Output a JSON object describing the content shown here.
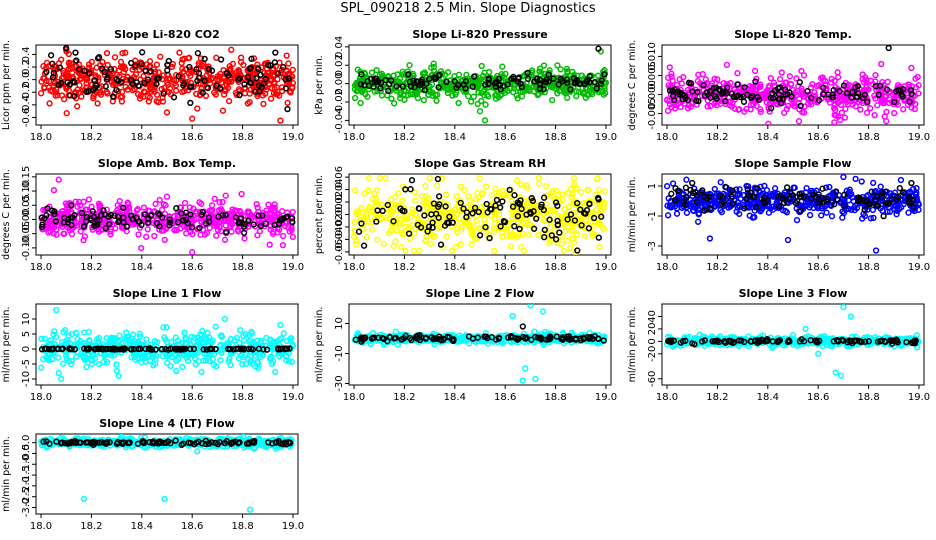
{
  "page_title": "SPL_090218  2.5 Min. Slope Diagnostics",
  "chart_data": [
    {
      "type": "scatter",
      "title": "Slope Li-820 CO2",
      "ylabel": "Licor ppm per min.",
      "xlim": [
        17.98,
        19.02
      ],
      "ylim": [
        -0.72,
        0.55
      ],
      "xticks": [
        18.0,
        18.2,
        18.4,
        18.6,
        18.8,
        19.0
      ],
      "xticklabels": [
        "18.0",
        "18.2",
        "18.4",
        "18.6",
        "18.8",
        "19.0"
      ],
      "yticks": [
        -0.6,
        -0.4,
        -0.2,
        0.0,
        0.2,
        0.4
      ],
      "yticklabels": [
        "-0.6",
        "-0.4",
        "-0.2",
        "0.0",
        "0.2",
        "0.4"
      ],
      "series": [
        {
          "name": "all",
          "color": "#ff0000",
          "center": 0.0,
          "spread": 0.18,
          "outliers": [
            [
              18.1,
              0.48
            ],
            [
              18.6,
              -0.62
            ],
            [
              18.95,
              -0.65
            ],
            [
              18.5,
              -0.52
            ]
          ]
        },
        {
          "name": "selected",
          "color": "#000000",
          "center": 0.0,
          "spread": 0.18,
          "outliers": [
            [
              18.1,
              0.5
            ],
            [
              18.93,
              0.43
            ]
          ]
        }
      ]
    },
    {
      "type": "scatter",
      "title": "Slope Li-820 Pressure",
      "ylabel": "kPa per min.",
      "xlim": [
        17.98,
        19.02
      ],
      "ylim": [
        -0.045,
        0.042
      ],
      "xticks": [
        18.0,
        18.2,
        18.4,
        18.6,
        18.8,
        19.0
      ],
      "xticklabels": [
        "18.0",
        "18.2",
        "18.4",
        "18.6",
        "18.8",
        "19.0"
      ],
      "yticks": [
        -0.04,
        -0.02,
        0.0,
        0.02,
        0.04
      ],
      "yticklabels": [
        "-0.04",
        "-0.02",
        "0.00",
        "0.02",
        "0.04"
      ],
      "series": [
        {
          "name": "all",
          "color": "#00bb00",
          "center": 0.0,
          "spread": 0.008,
          "outliers": [
            [
              18.52,
              -0.04
            ],
            [
              18.5,
              -0.03
            ],
            [
              18.22,
              0.02
            ],
            [
              18.98,
              0.035
            ]
          ]
        },
        {
          "name": "selected",
          "color": "#000000",
          "center": 0.002,
          "spread": 0.004,
          "outliers": [
            [
              18.97,
              0.038
            ]
          ]
        }
      ]
    },
    {
      "type": "scatter",
      "title": "Slope Li-820 Temp.",
      "ylabel": "degrees C per min.",
      "xlim": [
        17.98,
        19.02
      ],
      "ylim": [
        -0.008,
        0.013
      ],
      "xticks": [
        18.0,
        18.2,
        18.4,
        18.6,
        18.8,
        19.0
      ],
      "xticklabels": [
        "18.0",
        "18.2",
        "18.4",
        "18.6",
        "18.8",
        "19.0"
      ],
      "yticks": [
        -0.005,
        0.0,
        0.005,
        0.01
      ],
      "yticklabels": [
        "-0.005",
        "0.000",
        "0.005",
        "0.010"
      ],
      "series": [
        {
          "name": "all",
          "color": "#ff00ff",
          "center": 0.0,
          "spread": 0.0025,
          "outliers": [
            [
              18.85,
              0.008
            ],
            [
              18.87,
              -0.007
            ],
            [
              18.05,
              0.004
            ],
            [
              18.97,
              0.007
            ]
          ]
        },
        {
          "name": "selected",
          "color": "#000000",
          "center": 0.0,
          "spread": 0.0012,
          "outliers": [
            [
              18.88,
              0.0122
            ]
          ]
        }
      ]
    },
    {
      "type": "scatter",
      "title": "Slope Amb. Box Temp.",
      "ylabel": "degrees C per min.",
      "xlim": [
        17.98,
        19.02
      ],
      "ylim": [
        -0.125,
        0.16
      ],
      "xticks": [
        18.0,
        18.2,
        18.4,
        18.6,
        18.8,
        19.0
      ],
      "xticklabels": [
        "18.0",
        "18.2",
        "18.4",
        "18.6",
        "18.8",
        "19.0"
      ],
      "yticks": [
        -0.1,
        -0.05,
        0.0,
        0.05,
        0.1,
        0.15
      ],
      "yticklabels": [
        "-0.10",
        "-0.05",
        "0.00",
        "0.05",
        "0.10",
        "0.15"
      ],
      "series": [
        {
          "name": "all",
          "color": "#ff00ff",
          "center": 0.0,
          "spread": 0.03,
          "outliers": [
            [
              18.07,
              0.14
            ],
            [
              18.6,
              -0.115
            ],
            [
              18.5,
              0.08
            ],
            [
              18.96,
              -0.09
            ]
          ]
        },
        {
          "name": "selected",
          "color": "#000000",
          "center": 0.0,
          "spread": 0.02,
          "outliers": [
            [
              18.12,
              0.05
            ]
          ]
        }
      ]
    },
    {
      "type": "scatter",
      "title": "Slope Gas Stream RH",
      "ylabel": "percent per min.",
      "xlim": [
        17.98,
        19.02
      ],
      "ylim": [
        -0.065,
        0.065
      ],
      "xticks": [
        18.0,
        18.2,
        18.4,
        18.6,
        18.8,
        19.0
      ],
      "xticklabels": [
        "18.0",
        "18.2",
        "18.4",
        "18.6",
        "18.8",
        "19.0"
      ],
      "yticks": [
        -0.06,
        -0.04,
        -0.02,
        0.0,
        0.02,
        0.04,
        0.06
      ],
      "yticklabels": [
        "-0.06",
        "-0.04",
        "-0.02",
        "0.00",
        "0.02",
        "0.04",
        "0.06"
      ],
      "series": [
        {
          "name": "all",
          "color": "#ffff00",
          "center": 0.0,
          "spread": 0.025,
          "outliers": [
            [
              18.88,
              -0.062
            ],
            [
              18.35,
              0.058
            ]
          ]
        },
        {
          "name": "selected",
          "color": "#000000",
          "center": 0.0,
          "spread": 0.022,
          "outliers": [
            [
              18.04,
              -0.05
            ],
            [
              18.23,
              0.055
            ]
          ]
        }
      ]
    },
    {
      "type": "scatter",
      "title": "Slope Sample Flow",
      "ylabel": "ml/min per min.",
      "xlim": [
        17.98,
        19.02
      ],
      "ylim": [
        -3.6,
        1.8
      ],
      "xticks": [
        18.0,
        18.2,
        18.4,
        18.6,
        18.8,
        19.0
      ],
      "xticklabels": [
        "18.0",
        "18.2",
        "18.4",
        "18.6",
        "18.8",
        "19.0"
      ],
      "yticks": [
        -3,
        -1,
        1
      ],
      "yticklabels": [
        "-3",
        "-1",
        "1"
      ],
      "series": [
        {
          "name": "all",
          "color": "#0000ff",
          "center": 0.0,
          "spread": 0.45,
          "outliers": [
            [
              18.17,
              -2.5
            ],
            [
              18.48,
              -2.6
            ],
            [
              18.83,
              -3.3
            ],
            [
              18.7,
              1.6
            ]
          ]
        },
        {
          "name": "selected",
          "color": "#000000",
          "center": 0.2,
          "spread": 0.4,
          "outliers": [
            [
              18.1,
              1.2
            ],
            [
              18.97,
              1.2
            ]
          ]
        }
      ]
    },
    {
      "type": "scatter",
      "title": "Slope Line 1 Flow",
      "ylabel": "ml/min per min.",
      "xlim": [
        17.98,
        19.02
      ],
      "ylim": [
        -12,
        15
      ],
      "xticks": [
        18.0,
        18.2,
        18.4,
        18.6,
        18.8,
        19.0
      ],
      "xticklabels": [
        "18.0",
        "18.2",
        "18.4",
        "18.6",
        "18.8",
        "19.0"
      ],
      "yticks": [
        -10,
        -5,
        0,
        5,
        10
      ],
      "yticklabels": [
        "-10",
        "-5",
        "0",
        "5",
        "10"
      ],
      "series": [
        {
          "name": "all",
          "color": "#00ffff",
          "center": 0.0,
          "spread": 2.8,
          "outliers": [
            [
              18.06,
              13
            ],
            [
              18.07,
              -8
            ],
            [
              18.08,
              -10
            ],
            [
              18.18,
              -6
            ],
            [
              18.73,
              10
            ],
            [
              18.95,
              8
            ],
            [
              18.84,
              -5
            ]
          ]
        },
        {
          "name": "selected",
          "color": "#000000",
          "center": 0.0,
          "spread": 0.1,
          "outliers": []
        }
      ]
    },
    {
      "type": "scatter",
      "title": "Slope Line 2 Flow",
      "ylabel": "ml/min per min.",
      "xlim": [
        17.98,
        19.02
      ],
      "ylim": [
        -31,
        23
      ],
      "xticks": [
        18.0,
        18.2,
        18.4,
        18.6,
        18.8,
        19.0
      ],
      "xticklabels": [
        "18.0",
        "18.2",
        "18.4",
        "18.6",
        "18.8",
        "19.0"
      ],
      "yticks": [
        -30,
        -10,
        10
      ],
      "yticklabels": [
        "-30",
        "-10",
        "10"
      ],
      "series": [
        {
          "name": "all",
          "color": "#00ffff",
          "center": 0.0,
          "spread": 1.5,
          "outliers": [
            [
              18.63,
              15
            ],
            [
              18.67,
              -28
            ],
            [
              18.72,
              -27
            ],
            [
              18.75,
              18
            ],
            [
              18.68,
              -20
            ],
            [
              18.7,
              22
            ]
          ]
        },
        {
          "name": "selected",
          "color": "#000000",
          "center": 0.0,
          "spread": 0.8,
          "outliers": [
            [
              18.67,
              8
            ]
          ]
        }
      ]
    },
    {
      "type": "scatter",
      "title": "Slope Line 3 Flow",
      "ylabel": "ml/min per min.",
      "xlim": [
        17.98,
        19.02
      ],
      "ylim": [
        -70,
        60
      ],
      "xticks": [
        18.0,
        18.2,
        18.4,
        18.6,
        18.8,
        19.0
      ],
      "xticklabels": [
        "18.0",
        "18.2",
        "18.4",
        "18.6",
        "18.8",
        "19.0"
      ],
      "yticks": [
        -60,
        -20,
        0,
        20,
        40
      ],
      "yticklabels": [
        "-60",
        "-20",
        "0",
        "20",
        "40"
      ],
      "series": [
        {
          "name": "all",
          "color": "#00ffff",
          "center": 0.0,
          "spread": 3.5,
          "outliers": [
            [
              18.7,
              55
            ],
            [
              18.67,
              -50
            ],
            [
              18.69,
              -55
            ],
            [
              18.73,
              40
            ],
            [
              18.55,
              20
            ],
            [
              18.6,
              -20
            ]
          ]
        },
        {
          "name": "selected",
          "color": "#000000",
          "center": 0.0,
          "spread": 1.5,
          "outliers": []
        }
      ]
    },
    {
      "type": "scatter",
      "title": "Slope Line 4 (LT) Flow",
      "ylabel": "ml/min per min.",
      "xlim": [
        17.98,
        19.02
      ],
      "ylim": [
        -3.3,
        0.4
      ],
      "xticks": [
        18.0,
        18.2,
        18.4,
        18.6,
        18.8,
        19.0
      ],
      "xticklabels": [
        "18.0",
        "18.2",
        "18.4",
        "18.6",
        "18.8",
        "19.0"
      ],
      "yticks": [
        -3.0,
        -2.5,
        -2.0,
        -1.5,
        -1.0,
        -0.5,
        0.0
      ],
      "yticklabels": [
        "-3.0",
        "-2.5",
        "-2.0",
        "-1.5",
        "-1.0",
        "-0.5",
        "0.0"
      ],
      "series": [
        {
          "name": "all",
          "color": "#00ffff",
          "center": 0.0,
          "spread": 0.09,
          "outliers": [
            [
              18.17,
              -2.6
            ],
            [
              18.49,
              -2.6
            ],
            [
              18.83,
              -3.1
            ],
            [
              18.62,
              -0.4
            ]
          ]
        },
        {
          "name": "selected",
          "color": "#000000",
          "center": 0.0,
          "spread": 0.04,
          "outliers": []
        }
      ]
    }
  ]
}
